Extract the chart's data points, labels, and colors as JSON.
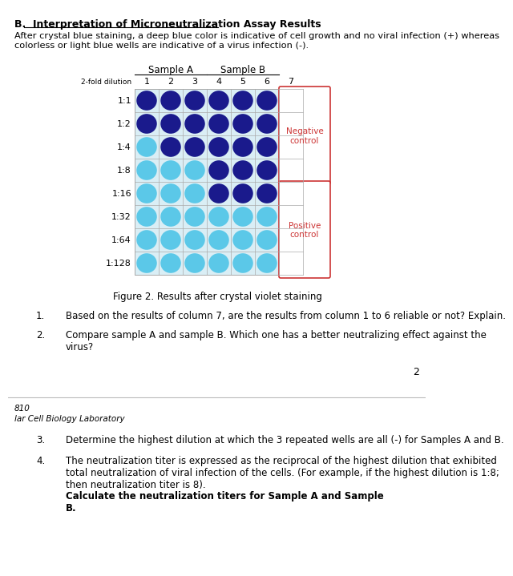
{
  "title_b": "B.",
  "title_text": "Interpretation of Microneutralization Assay Results",
  "intro_text": "After crystal blue staining, a deep blue color is indicative of cell growth and no viral infection (+) whereas\ncolorless or light blue wells are indicative of a virus infection (-).",
  "sample_a_label": "Sample A",
  "sample_b_label": "Sample B",
  "col_label": "2-fold dilution",
  "col_numbers": [
    "1",
    "2",
    "3",
    "4",
    "5",
    "6",
    "7"
  ],
  "row_labels": [
    "1:1",
    "1:2",
    "1:4",
    "1:8",
    "1:16",
    "1:32",
    "1:64",
    "1:128"
  ],
  "dark_blue": "#1a1a8c",
  "light_blue": "#5bc8e8",
  "grid_bg": "#daeef5",
  "control_color": "#cc3333",
  "grid_line_color": "#aaaaaa",
  "cell_colors": [
    [
      "dark",
      "dark",
      "dark",
      "dark",
      "dark",
      "dark",
      "light"
    ],
    [
      "dark",
      "dark",
      "dark",
      "dark",
      "dark",
      "dark",
      "light"
    ],
    [
      "light",
      "dark",
      "dark",
      "dark",
      "dark",
      "dark",
      "light"
    ],
    [
      "light",
      "light",
      "light",
      "dark",
      "dark",
      "dark",
      "light"
    ],
    [
      "light",
      "light",
      "light",
      "dark",
      "dark",
      "dark",
      "dark"
    ],
    [
      "light",
      "light",
      "light",
      "light",
      "light",
      "light",
      "dark"
    ],
    [
      "light",
      "light",
      "light",
      "light",
      "light",
      "light",
      "dark"
    ],
    [
      "light",
      "light",
      "light",
      "light",
      "light",
      "light",
      "dark"
    ]
  ],
  "figure_caption": "Figure 2. Results after crystal violet staining",
  "q1": "Based on the results of column 7, are the results from column 1 to 6 reliable or not? Explain.",
  "q2": "Compare sample A and sample B. Which one has a better neutralizing effect against the\nvirus?",
  "page_number": "2",
  "footer_line1": "810",
  "footer_line2": "lar Cell Biology Laboratory",
  "q3": "Determine the highest dilution at which the 3 repeated wells are all (-) for Samples A and B.",
  "q4_normal": "The neutralization titer is expressed as the reciprocal of the highest dilution that exhibited\ntotal neutralization of viral infection of the cells. (For example, if the highest dilution is 1:8;\nthen neutralization titer is 8). ",
  "q4_bold": "Calculate the neutralization titers for Sample A and Sample\nB",
  "q4_end": "."
}
